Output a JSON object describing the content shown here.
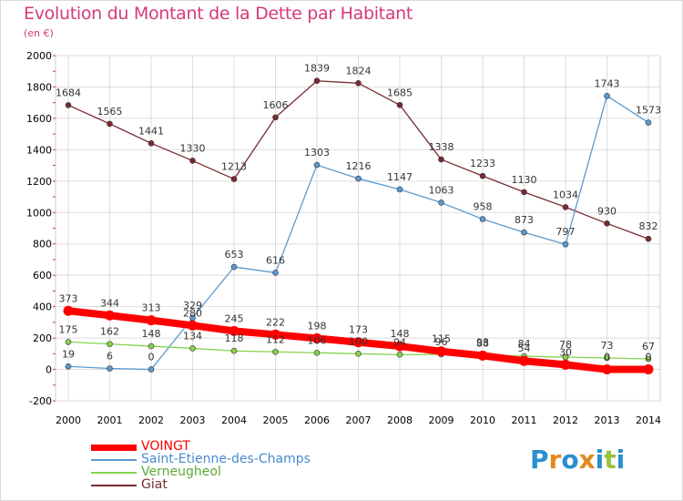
{
  "header": {
    "title": "Evolution du Montant de la Dette par Habitant",
    "subtitle": "(en €)"
  },
  "brand": {
    "letters": [
      "P",
      "r",
      "o",
      "x",
      "i",
      "t",
      "i"
    ],
    "colors": [
      "#2a8fd0",
      "#e08a1e",
      "#2a8fd0",
      "#e08a1e",
      "#2a8fd0",
      "#9ac23c",
      "#2a8fd0"
    ]
  },
  "chart_data": {
    "type": "line",
    "title": "Evolution du Montant de la Dette par Habitant",
    "subtitle": "(en €)",
    "x": [
      "2000",
      "2001",
      "2002",
      "2003",
      "2004",
      "2005",
      "2006",
      "2007",
      "2008",
      "2009",
      "2010",
      "2011",
      "2012",
      "2013",
      "2014"
    ],
    "ylim": [
      -200,
      2000
    ],
    "yticks": [
      -200,
      0,
      200,
      400,
      600,
      800,
      1000,
      1200,
      1400,
      1600,
      1800,
      2000
    ],
    "grid": true,
    "legend_position": "bottom-left",
    "series": [
      {
        "name": "VOINGT",
        "color": "#ff0000",
        "values": [
          373,
          344,
          313,
          280,
          245,
          222,
          198,
          173,
          148,
          115,
          88,
          54,
          30,
          0,
          0
        ],
        "labels": [
          "373",
          "344",
          "313",
          "280",
          "245",
          "222",
          "198",
          "173",
          "148",
          "115",
          "88",
          "54",
          "30",
          "0",
          "0"
        ]
      },
      {
        "name": "Saint-Etienne-des-Champs",
        "color": "#5a9ad0",
        "values": [
          19,
          6,
          0,
          329,
          653,
          616,
          1303,
          1216,
          1147,
          1063,
          958,
          873,
          797,
          1743,
          1573
        ],
        "labels": [
          "19",
          "6",
          "0",
          "329",
          "653",
          "616",
          "1303",
          "1216",
          "1147",
          "1063",
          "958",
          "873",
          "797",
          "1743",
          "1573"
        ]
      },
      {
        "name": "Verneugheol",
        "color": "#86d14e",
        "values": [
          175,
          162,
          148,
          134,
          118,
          112,
          106,
          100,
          94,
          96,
          93,
          84,
          78,
          73,
          67
        ],
        "labels": [
          "175",
          "162",
          "148",
          "134",
          "118",
          "112",
          "106",
          "100",
          "94",
          "96",
          "93",
          "84",
          "78",
          "73",
          "67"
        ]
      },
      {
        "name": "Giat",
        "color": "#7a2a32",
        "values": [
          1684,
          1565,
          1441,
          1330,
          1213,
          1606,
          1839,
          1824,
          1685,
          1338,
          1233,
          1130,
          1034,
          930,
          832
        ],
        "labels": [
          "1684",
          "1565",
          "1441",
          "1330",
          "1213",
          "1606",
          "1839",
          "1824",
          "1685",
          "1338",
          "1233",
          "1130",
          "1034",
          "930",
          "832"
        ]
      }
    ]
  }
}
